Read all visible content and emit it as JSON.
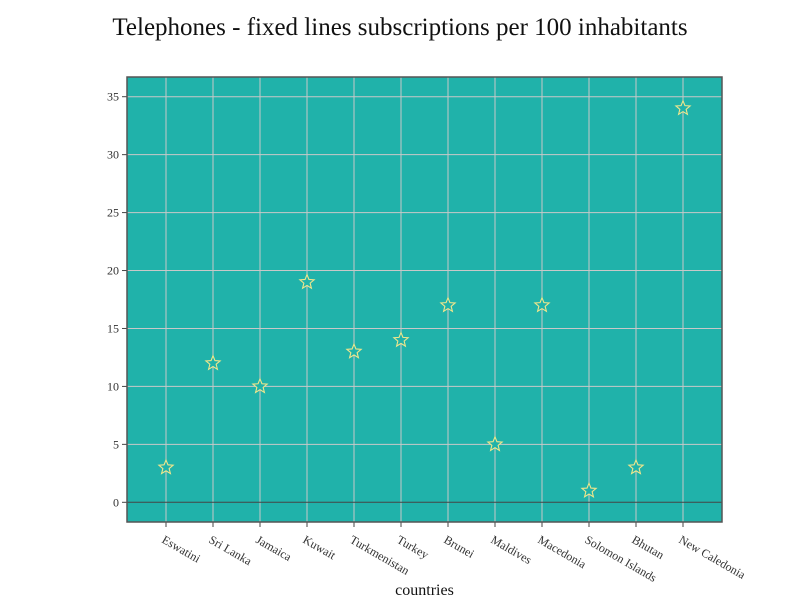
{
  "chart_data": {
    "type": "scatter",
    "title": "Telephones - fixed lines subscriptions per 100 inhabitants",
    "xlabel": "countries",
    "ylabel": "",
    "categories": [
      "Eswatini",
      "Sri Lanka",
      "Jamaica",
      "Kuwait",
      "Turkmenistan",
      "Turkey",
      "Brunei",
      "Maldives",
      "Macedonia",
      "Solomon Islands",
      "Bhutan",
      "New Caledonia"
    ],
    "values": [
      3,
      12,
      10,
      19,
      13,
      14,
      17,
      5,
      17,
      1,
      3,
      34
    ],
    "ylim": [
      -1.7,
      36.7
    ],
    "yticks": [
      0,
      5,
      10,
      15,
      20,
      25,
      30,
      35
    ],
    "grid": true,
    "marker": "star",
    "colors": {
      "plot_background": "#20B2AA",
      "grid": "#C8C8C8",
      "marker_fill": "#20B2AA",
      "marker_stroke": "#F0E68C",
      "zero_line": "#444444",
      "frame": "#555555"
    }
  }
}
